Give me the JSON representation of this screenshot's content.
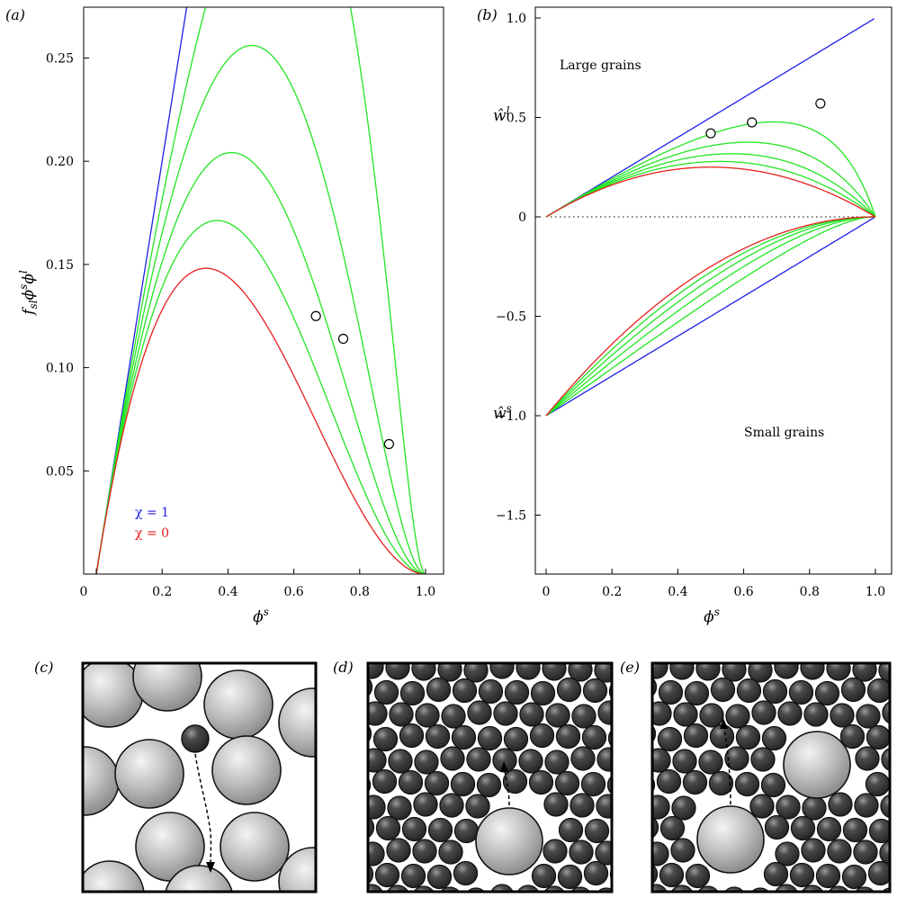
{
  "panels": {
    "a": "(a)",
    "b": "(b)",
    "c": "(c)",
    "d": "(d)",
    "e": "(e)"
  },
  "colors": {
    "chi1": "#1f1fe6",
    "chi0": "#e61f1f",
    "intermediate": "#22e622",
    "grain_large": "#b8b8b8",
    "grain_small": "#3c3c3c"
  },
  "chart_data": [
    {
      "id": "a",
      "type": "line",
      "xlabel": "ϕ^s",
      "ylabel": "f_sl ϕ^s ϕ^l",
      "xlim": [
        0,
        1
      ],
      "ylim": [
        0,
        0.27
      ],
      "x_ticks": [
        "0",
        "0.2",
        "0.4",
        "0.6",
        "0.8",
        "1.0"
      ],
      "y_ticks": [
        "0.05",
        "0.10",
        "0.15",
        "0.20",
        "0.25"
      ],
      "series": [
        {
          "name": "χ = 1",
          "chi": 1.0,
          "color": "#1f1fe6"
        },
        {
          "chi": 0.8,
          "color": "#22e622"
        },
        {
          "chi": 0.6,
          "color": "#22e622"
        },
        {
          "chi": 0.4,
          "color": "#22e622"
        },
        {
          "chi": 0.2,
          "color": "#22e622"
        },
        {
          "name": "χ = 0",
          "chi": 0.0,
          "color": "#e61f1f"
        }
      ],
      "markers": [
        {
          "x": 0.667,
          "y": 0.125
        },
        {
          "x": 0.75,
          "y": 0.114
        },
        {
          "x": 0.889,
          "y": 0.063
        }
      ],
      "legend": [
        {
          "text": "χ = 1",
          "color": "#1f1fe6"
        },
        {
          "text": "χ = 0",
          "color": "#e61f1f"
        }
      ]
    },
    {
      "id": "b",
      "type": "line",
      "xlabel": "ϕ^s",
      "xlim": [
        0,
        1
      ],
      "ylim": [
        -1.75,
        1.0
      ],
      "x_ticks": [
        "0",
        "0.2",
        "0.4",
        "0.6",
        "0.8",
        "1.0"
      ],
      "y_ticks": [
        "−1.5",
        "−1.0",
        "−0.5",
        "0",
        "0.5",
        "1.0"
      ],
      "curve_labels": {
        "large": "ŵ^l",
        "small": "ŵ^s"
      },
      "annotations": {
        "large": "Large grains",
        "small": "Small grains"
      },
      "series": [
        {
          "chi": 1.0,
          "color": "#1f1fe6"
        },
        {
          "chi": 0.8,
          "color": "#22e622"
        },
        {
          "chi": 0.6,
          "color": "#22e622"
        },
        {
          "chi": 0.4,
          "color": "#22e622"
        },
        {
          "chi": 0.2,
          "color": "#22e622"
        },
        {
          "chi": 0.0,
          "color": "#e61f1f"
        }
      ],
      "markers": [
        {
          "x": 0.5,
          "y": 0.42
        },
        {
          "x": 0.625,
          "y": 0.475
        },
        {
          "x": 0.833,
          "y": 0.57
        }
      ],
      "zero_line": "dotted"
    }
  ]
}
